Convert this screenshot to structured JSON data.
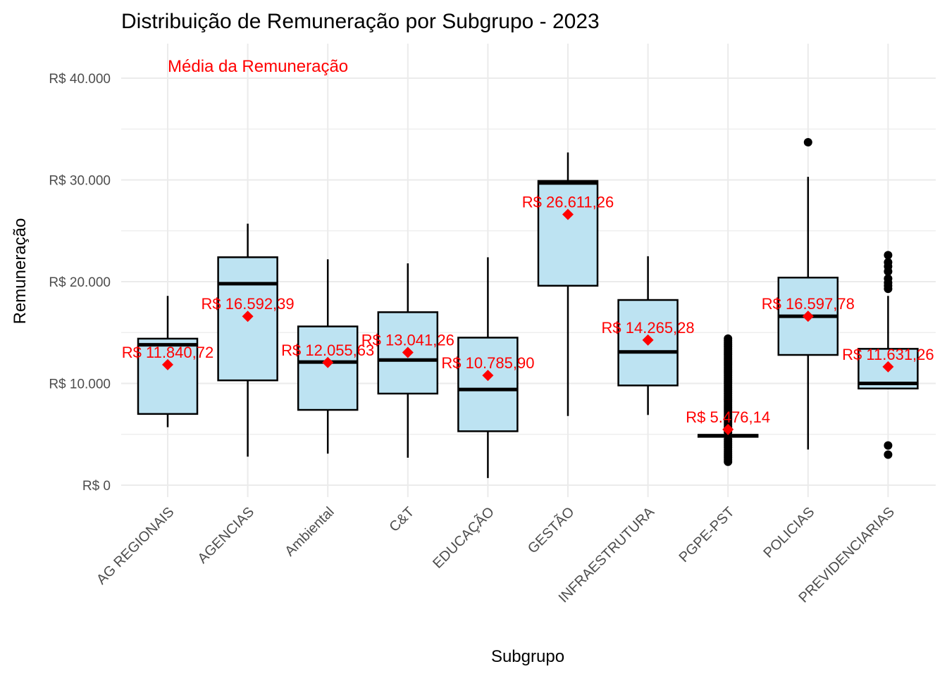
{
  "chart_data": {
    "type": "boxplot",
    "title": "Distribuição de Remuneração por Subgrupo - 2023",
    "xlabel": "Subgrupo",
    "ylabel": "Remuneração",
    "ylim": [
      -1500,
      43000
    ],
    "y_ticks": [
      0,
      10000,
      20000,
      30000,
      40000
    ],
    "y_tick_labels": [
      "R$ 0",
      "R$ 10.000",
      "R$ 20.000",
      "R$ 30.000",
      "R$ 40.000"
    ],
    "annotation": {
      "text": "Média da Remuneração",
      "color": "#ff0000"
    },
    "colors": {
      "box_fill": "#bde3f2",
      "box_stroke": "#000000",
      "mean": "#ff0000",
      "grid": "#ebebeb",
      "outlier": "#000000"
    },
    "grid": true,
    "legend": "none",
    "categories": [
      "AG REGIONAIS",
      "AGENCIAS",
      "Ambiental",
      "C&T",
      "EDUCAÇÃO",
      "GESTÃO",
      "INFRAESTRUTURA",
      "PGPE-PST",
      "POLICIAS",
      "PREVIDENCIARIAS"
    ],
    "boxes": [
      {
        "q1": 7000,
        "median": 13800,
        "q3": 14400,
        "whisker_low": 5700,
        "whisker_high": 18600,
        "mean": 11840.72,
        "mean_label": "R$ 11.840,72",
        "outliers": []
      },
      {
        "q1": 10300,
        "median": 19800,
        "q3": 22400,
        "whisker_low": 2800,
        "whisker_high": 25700,
        "mean": 16592.39,
        "mean_label": "R$ 16.592,39",
        "outliers": []
      },
      {
        "q1": 7400,
        "median": 12100,
        "q3": 15600,
        "whisker_low": 3100,
        "whisker_high": 22200,
        "mean": 12055.63,
        "mean_label": "R$ 12.055,63",
        "outliers": []
      },
      {
        "q1": 9000,
        "median": 12300,
        "q3": 17000,
        "whisker_low": 2700,
        "whisker_high": 21800,
        "mean": 13041.26,
        "mean_label": "R$ 13.041,26",
        "outliers": []
      },
      {
        "q1": 5300,
        "median": 9400,
        "q3": 14500,
        "whisker_low": 700,
        "whisker_high": 22400,
        "mean": 10785.9,
        "mean_label": "R$ 10.785,90",
        "outliers": []
      },
      {
        "q1": 19600,
        "median": 29700,
        "q3": 29900,
        "whisker_low": 6800,
        "whisker_high": 32700,
        "mean": 26611.26,
        "mean_label": "R$ 26.611,26",
        "outliers": []
      },
      {
        "q1": 9800,
        "median": 13100,
        "q3": 18200,
        "whisker_low": 6900,
        "whisker_high": 22500,
        "mean": 14265.28,
        "mean_label": "R$ 14.265,28",
        "outliers": []
      },
      {
        "q1": 4750,
        "median": 4850,
        "q3": 4950,
        "whisker_low": 4700,
        "whisker_high": 5000,
        "mean": 5476.14,
        "mean_label": "R$ 5.476,14",
        "outliers": [
          2300,
          2500,
          2700,
          2900,
          3100,
          3300,
          3500,
          3700,
          3900,
          4100,
          4300,
          4500,
          5200,
          5400,
          5600,
          5800,
          6000,
          6200,
          6400,
          6600,
          6800,
          7000,
          7200,
          7400,
          7600,
          7800,
          8000,
          8200,
          8400,
          8600,
          8800,
          9000,
          9200,
          9400,
          9600,
          9800,
          10000,
          10200,
          10400,
          10600,
          10800,
          11000,
          11200,
          11400,
          11600,
          11800,
          12000,
          12200,
          12400,
          12600,
          12800,
          13000,
          13200,
          13400,
          13600,
          13800,
          14000,
          14200,
          14400
        ]
      },
      {
        "q1": 12800,
        "median": 16600,
        "q3": 20400,
        "whisker_low": 3500,
        "whisker_high": 30300,
        "mean": 16597.78,
        "mean_label": "R$ 16.597,78",
        "outliers": [
          33700
        ]
      },
      {
        "q1": 9500,
        "median": 10000,
        "q3": 13400,
        "whisker_low": 9500,
        "whisker_high": 18600,
        "mean": 11631.26,
        "mean_label": "R$ 11.631,26",
        "outliers": [
          3000,
          3900,
          19300,
          19600,
          19900,
          20300,
          21000,
          21500,
          21900,
          22600
        ]
      }
    ]
  }
}
